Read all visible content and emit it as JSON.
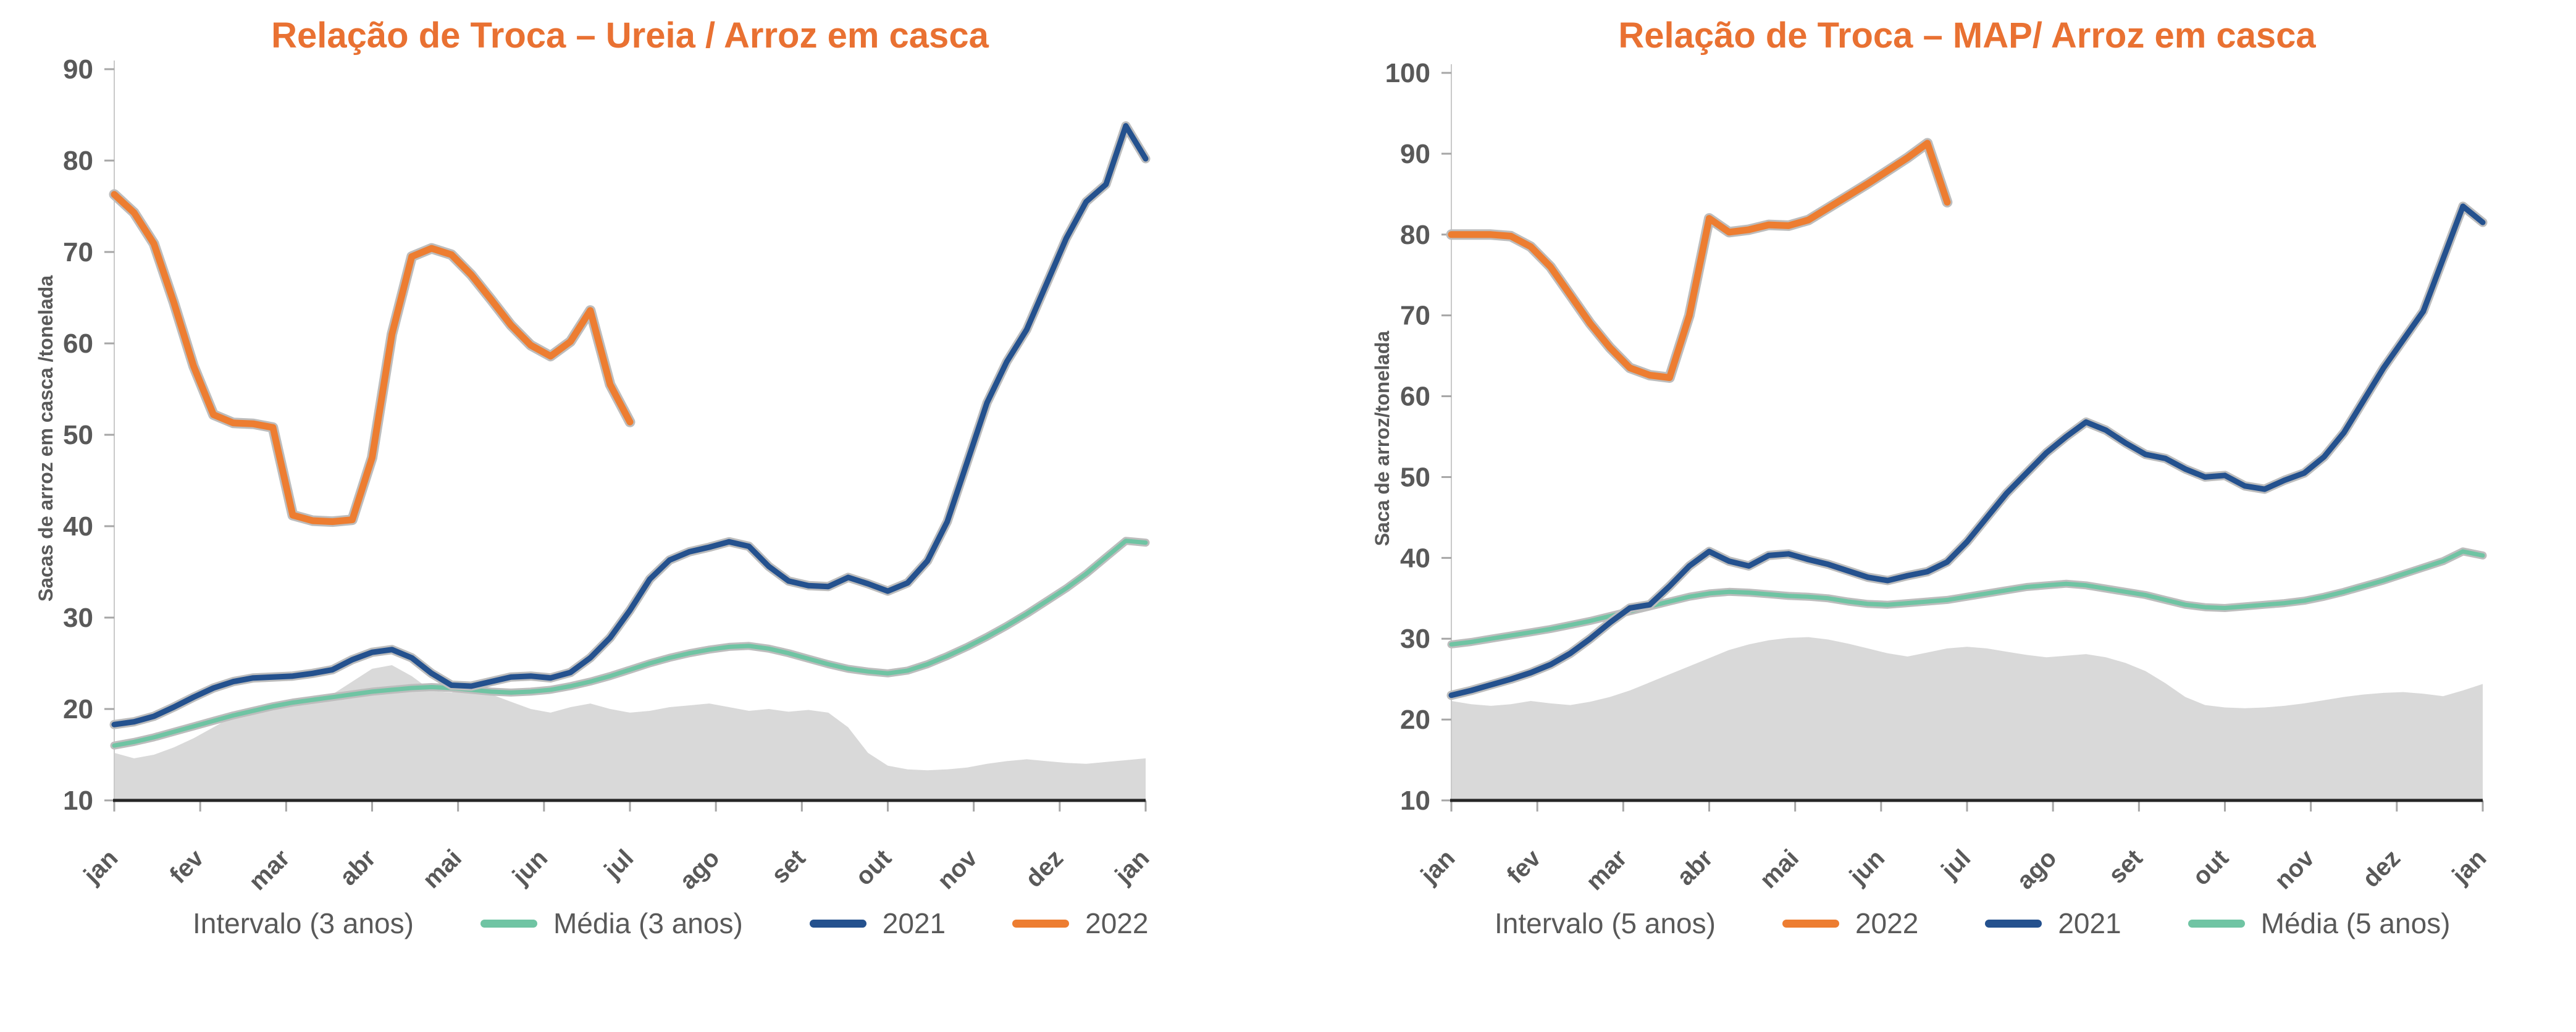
{
  "page": {
    "background": "#ffffff",
    "text_color": "#595959",
    "area_below_interval_color": "#d9d9d9",
    "interval_band_color": "#ffffff",
    "line_halo_color": "#bdbdbd",
    "x_axis_line_color": "#262626",
    "y_axis_line_color": "#c9c9c9"
  },
  "chart_data": [
    {
      "type": "line",
      "title": "Relação de Troca – Ureia / Arroz em casca",
      "title_color": "#E97132",
      "y_axis_label": "Sacas de arroz em casca /tonelada",
      "y_min": 10,
      "y_max": 90,
      "y_ticks": [
        90,
        80,
        70,
        60,
        50,
        40,
        30,
        20,
        10
      ],
      "x_tick_labels": [
        "jan",
        "fev",
        "mar",
        "abr",
        "mai",
        "jun",
        "jul",
        "ago",
        "set",
        "out",
        "nov",
        "dez",
        "jan"
      ],
      "x_unit": "semanas do ano",
      "n_points": 53,
      "grid": false,
      "band": {
        "label": "Intervalo (3 anos)",
        "min": [
          15.2,
          14.6,
          15.0,
          15.8,
          16.8,
          18.0,
          19.2,
          20.2,
          20.6,
          20.3,
          20.8,
          21.6,
          23.0,
          24.4,
          24.8,
          23.6,
          22.0,
          21.8,
          22.3,
          21.6,
          20.8,
          20.0,
          19.6,
          20.2,
          20.6,
          20.0,
          19.6,
          19.8,
          20.2,
          20.4,
          20.6,
          20.2,
          19.8,
          20.0,
          19.7,
          19.9,
          19.6,
          18.0,
          15.2,
          13.8,
          13.4,
          13.3,
          13.4,
          13.6,
          14.0,
          14.3,
          14.5,
          14.3,
          14.1,
          14.0,
          14.2,
          14.4,
          14.6
        ],
        "max": [
          21.4,
          21.4,
          21.4,
          21.5,
          21.7,
          22.4,
          23.0,
          23.4,
          23.5,
          23.6,
          23.9,
          24.3,
          25.4,
          26.2,
          26.5,
          25.6,
          23.9,
          22.6,
          22.5,
          23.0,
          23.5,
          23.6,
          23.4,
          24.0,
          25.6,
          27.8,
          30.8,
          34.2,
          36.3,
          37.2,
          37.7,
          38.3,
          37.9,
          35.8,
          34.6,
          34.2,
          34.1,
          34.6,
          34.3,
          34.1,
          34.3,
          36.2,
          40.5,
          47.0,
          53.5,
          58.0,
          61.5,
          66.5,
          71.5,
          75.5,
          77.4,
          83.8,
          80.2
        ]
      },
      "series": [
        {
          "name": "Média (3 anos)",
          "color": "#6FC4A3",
          "width": 7,
          "values": [
            16.0,
            16.4,
            16.9,
            17.5,
            18.1,
            18.7,
            19.3,
            19.8,
            20.3,
            20.7,
            21.0,
            21.3,
            21.6,
            21.9,
            22.1,
            22.3,
            22.4,
            22.3,
            22.1,
            21.9,
            21.8,
            21.9,
            22.1,
            22.5,
            23.0,
            23.6,
            24.3,
            25.0,
            25.6,
            26.1,
            26.5,
            26.8,
            26.9,
            26.6,
            26.1,
            25.5,
            24.9,
            24.4,
            24.1,
            23.9,
            24.2,
            24.9,
            25.8,
            26.8,
            27.9,
            29.1,
            30.4,
            31.8,
            33.2,
            34.8,
            36.6,
            38.4,
            38.2
          ]
        },
        {
          "name": "2021",
          "color": "#24518E",
          "width": 9,
          "values": [
            18.3,
            18.6,
            19.2,
            20.2,
            21.3,
            22.3,
            23.0,
            23.4,
            23.5,
            23.6,
            23.9,
            24.3,
            25.4,
            26.2,
            26.5,
            25.6,
            23.9,
            22.6,
            22.5,
            23.0,
            23.5,
            23.6,
            23.4,
            24.0,
            25.6,
            27.8,
            30.8,
            34.2,
            36.3,
            37.2,
            37.7,
            38.3,
            37.8,
            35.6,
            34.0,
            33.5,
            33.4,
            34.4,
            33.7,
            32.9,
            33.8,
            36.2,
            40.5,
            47.0,
            53.5,
            58.0,
            61.5,
            66.5,
            71.5,
            75.5,
            77.4,
            83.8,
            80.2
          ]
        },
        {
          "name": "2022",
          "color": "#ED7D31",
          "width": 11,
          "values": [
            76.3,
            74.3,
            70.9,
            64.5,
            57.5,
            52.2,
            51.3,
            51.2,
            50.8,
            41.2,
            40.6,
            40.5,
            40.7,
            47.5,
            61.0,
            69.5,
            70.4,
            69.7,
            67.5,
            64.8,
            62.0,
            59.8,
            58.6,
            60.2,
            63.6,
            55.5,
            51.4
          ]
        }
      ],
      "legend": [
        {
          "label": "Intervalo (3 anos)",
          "swatch": "box",
          "color": "#ffffff"
        },
        {
          "label": "Média (3 anos)",
          "swatch": "line",
          "color": "#6FC4A3"
        },
        {
          "label": "2021",
          "swatch": "line",
          "color": "#24518E"
        },
        {
          "label": "2022",
          "swatch": "line",
          "color": "#ED7D31"
        }
      ]
    },
    {
      "type": "line",
      "title": "Relação de Troca – MAP/ Arroz em casca",
      "title_color": "#E97132",
      "y_axis_label": "Saca de arroz/tonelada",
      "y_min": 10,
      "y_max": 100,
      "y_ticks": [
        100,
        90,
        80,
        70,
        60,
        50,
        40,
        30,
        20,
        10
      ],
      "x_tick_labels": [
        "jan",
        "fev",
        "mar",
        "abr",
        "mai",
        "jun",
        "jul",
        "ago",
        "set",
        "out",
        "nov",
        "dez",
        "jan"
      ],
      "x_unit": "semanas do ano",
      "n_points": 53,
      "grid": false,
      "band": {
        "label": "Intervalo (5 anos)",
        "min": [
          22.3,
          21.9,
          21.7,
          21.9,
          22.3,
          22.0,
          21.8,
          22.2,
          22.8,
          23.6,
          24.6,
          25.6,
          26.6,
          27.6,
          28.6,
          29.3,
          29.8,
          30.1,
          30.2,
          29.9,
          29.4,
          28.8,
          28.2,
          27.8,
          28.3,
          28.8,
          29.0,
          28.8,
          28.4,
          28.0,
          27.7,
          27.9,
          28.1,
          27.7,
          27.0,
          26.0,
          24.5,
          22.8,
          21.8,
          21.5,
          21.4,
          21.5,
          21.7,
          22.0,
          22.4,
          22.8,
          23.1,
          23.3,
          23.4,
          23.2,
          22.9,
          23.6,
          24.4
        ],
        "max": [
          40.6,
          40.9,
          41.1,
          40.9,
          40.5,
          40.2,
          40.5,
          40.8,
          40.6,
          40.4,
          40.6,
          40.8,
          41.0,
          41.0,
          40.8,
          40.7,
          40.9,
          41.0,
          40.8,
          40.6,
          40.4,
          40.2,
          40.0,
          40.0,
          40.2,
          40.6,
          42.0,
          45.0,
          48.0,
          50.5,
          53.0,
          55.0,
          56.8,
          55.8,
          54.2,
          52.8,
          52.3,
          51.0,
          50.0,
          50.2,
          48.9,
          48.5,
          49.6,
          50.5,
          52.5,
          55.5,
          59.5,
          63.5,
          67.0,
          70.5,
          77.0,
          83.5,
          81.5
        ]
      },
      "series": [
        {
          "name": "Média (5 anos)",
          "color": "#6FC4A3",
          "width": 7,
          "values": [
            29.3,
            29.6,
            30.0,
            30.4,
            30.8,
            31.2,
            31.7,
            32.2,
            32.8,
            33.4,
            34.0,
            34.6,
            35.2,
            35.6,
            35.8,
            35.7,
            35.5,
            35.3,
            35.2,
            35.0,
            34.6,
            34.3,
            34.2,
            34.4,
            34.6,
            34.8,
            35.2,
            35.6,
            36.0,
            36.4,
            36.6,
            36.8,
            36.6,
            36.2,
            35.8,
            35.4,
            34.8,
            34.2,
            33.9,
            33.8,
            34.0,
            34.2,
            34.4,
            34.7,
            35.2,
            35.8,
            36.5,
            37.2,
            38.0,
            38.8,
            39.6,
            40.8,
            40.3
          ]
        },
        {
          "name": "2021",
          "color": "#24518E",
          "width": 9,
          "values": [
            23.0,
            23.6,
            24.3,
            25.0,
            25.8,
            26.8,
            28.2,
            30.0,
            32.0,
            33.8,
            34.2,
            36.5,
            39.0,
            40.8,
            39.6,
            39.0,
            40.3,
            40.5,
            39.8,
            39.2,
            38.4,
            37.6,
            37.2,
            37.8,
            38.3,
            39.5,
            42.0,
            45.0,
            48.0,
            50.5,
            53.0,
            55.0,
            56.8,
            55.8,
            54.2,
            52.8,
            52.3,
            51.0,
            50.0,
            50.2,
            48.9,
            48.5,
            49.6,
            50.5,
            52.5,
            55.5,
            59.5,
            63.5,
            67.0,
            70.5,
            77.0,
            83.5,
            81.5
          ]
        },
        {
          "name": "2022",
          "color": "#ED7D31",
          "width": 11,
          "values": [
            80.0,
            80.0,
            80.0,
            79.8,
            78.5,
            76.0,
            72.5,
            69.0,
            66.0,
            63.5,
            62.6,
            62.3,
            70.0,
            82.0,
            80.3,
            80.6,
            81.2,
            81.1,
            81.8,
            83.3,
            84.8,
            86.3,
            87.9,
            89.5,
            91.3,
            84.0
          ]
        }
      ],
      "legend": [
        {
          "label": "Intervalo (5 anos)",
          "swatch": "box",
          "color": "#ffffff"
        },
        {
          "label": "2022",
          "swatch": "line",
          "color": "#ED7D31"
        },
        {
          "label": "2021",
          "swatch": "line",
          "color": "#24518E"
        },
        {
          "label": "Média (5 anos)",
          "swatch": "line",
          "color": "#6FC4A3"
        }
      ]
    }
  ]
}
